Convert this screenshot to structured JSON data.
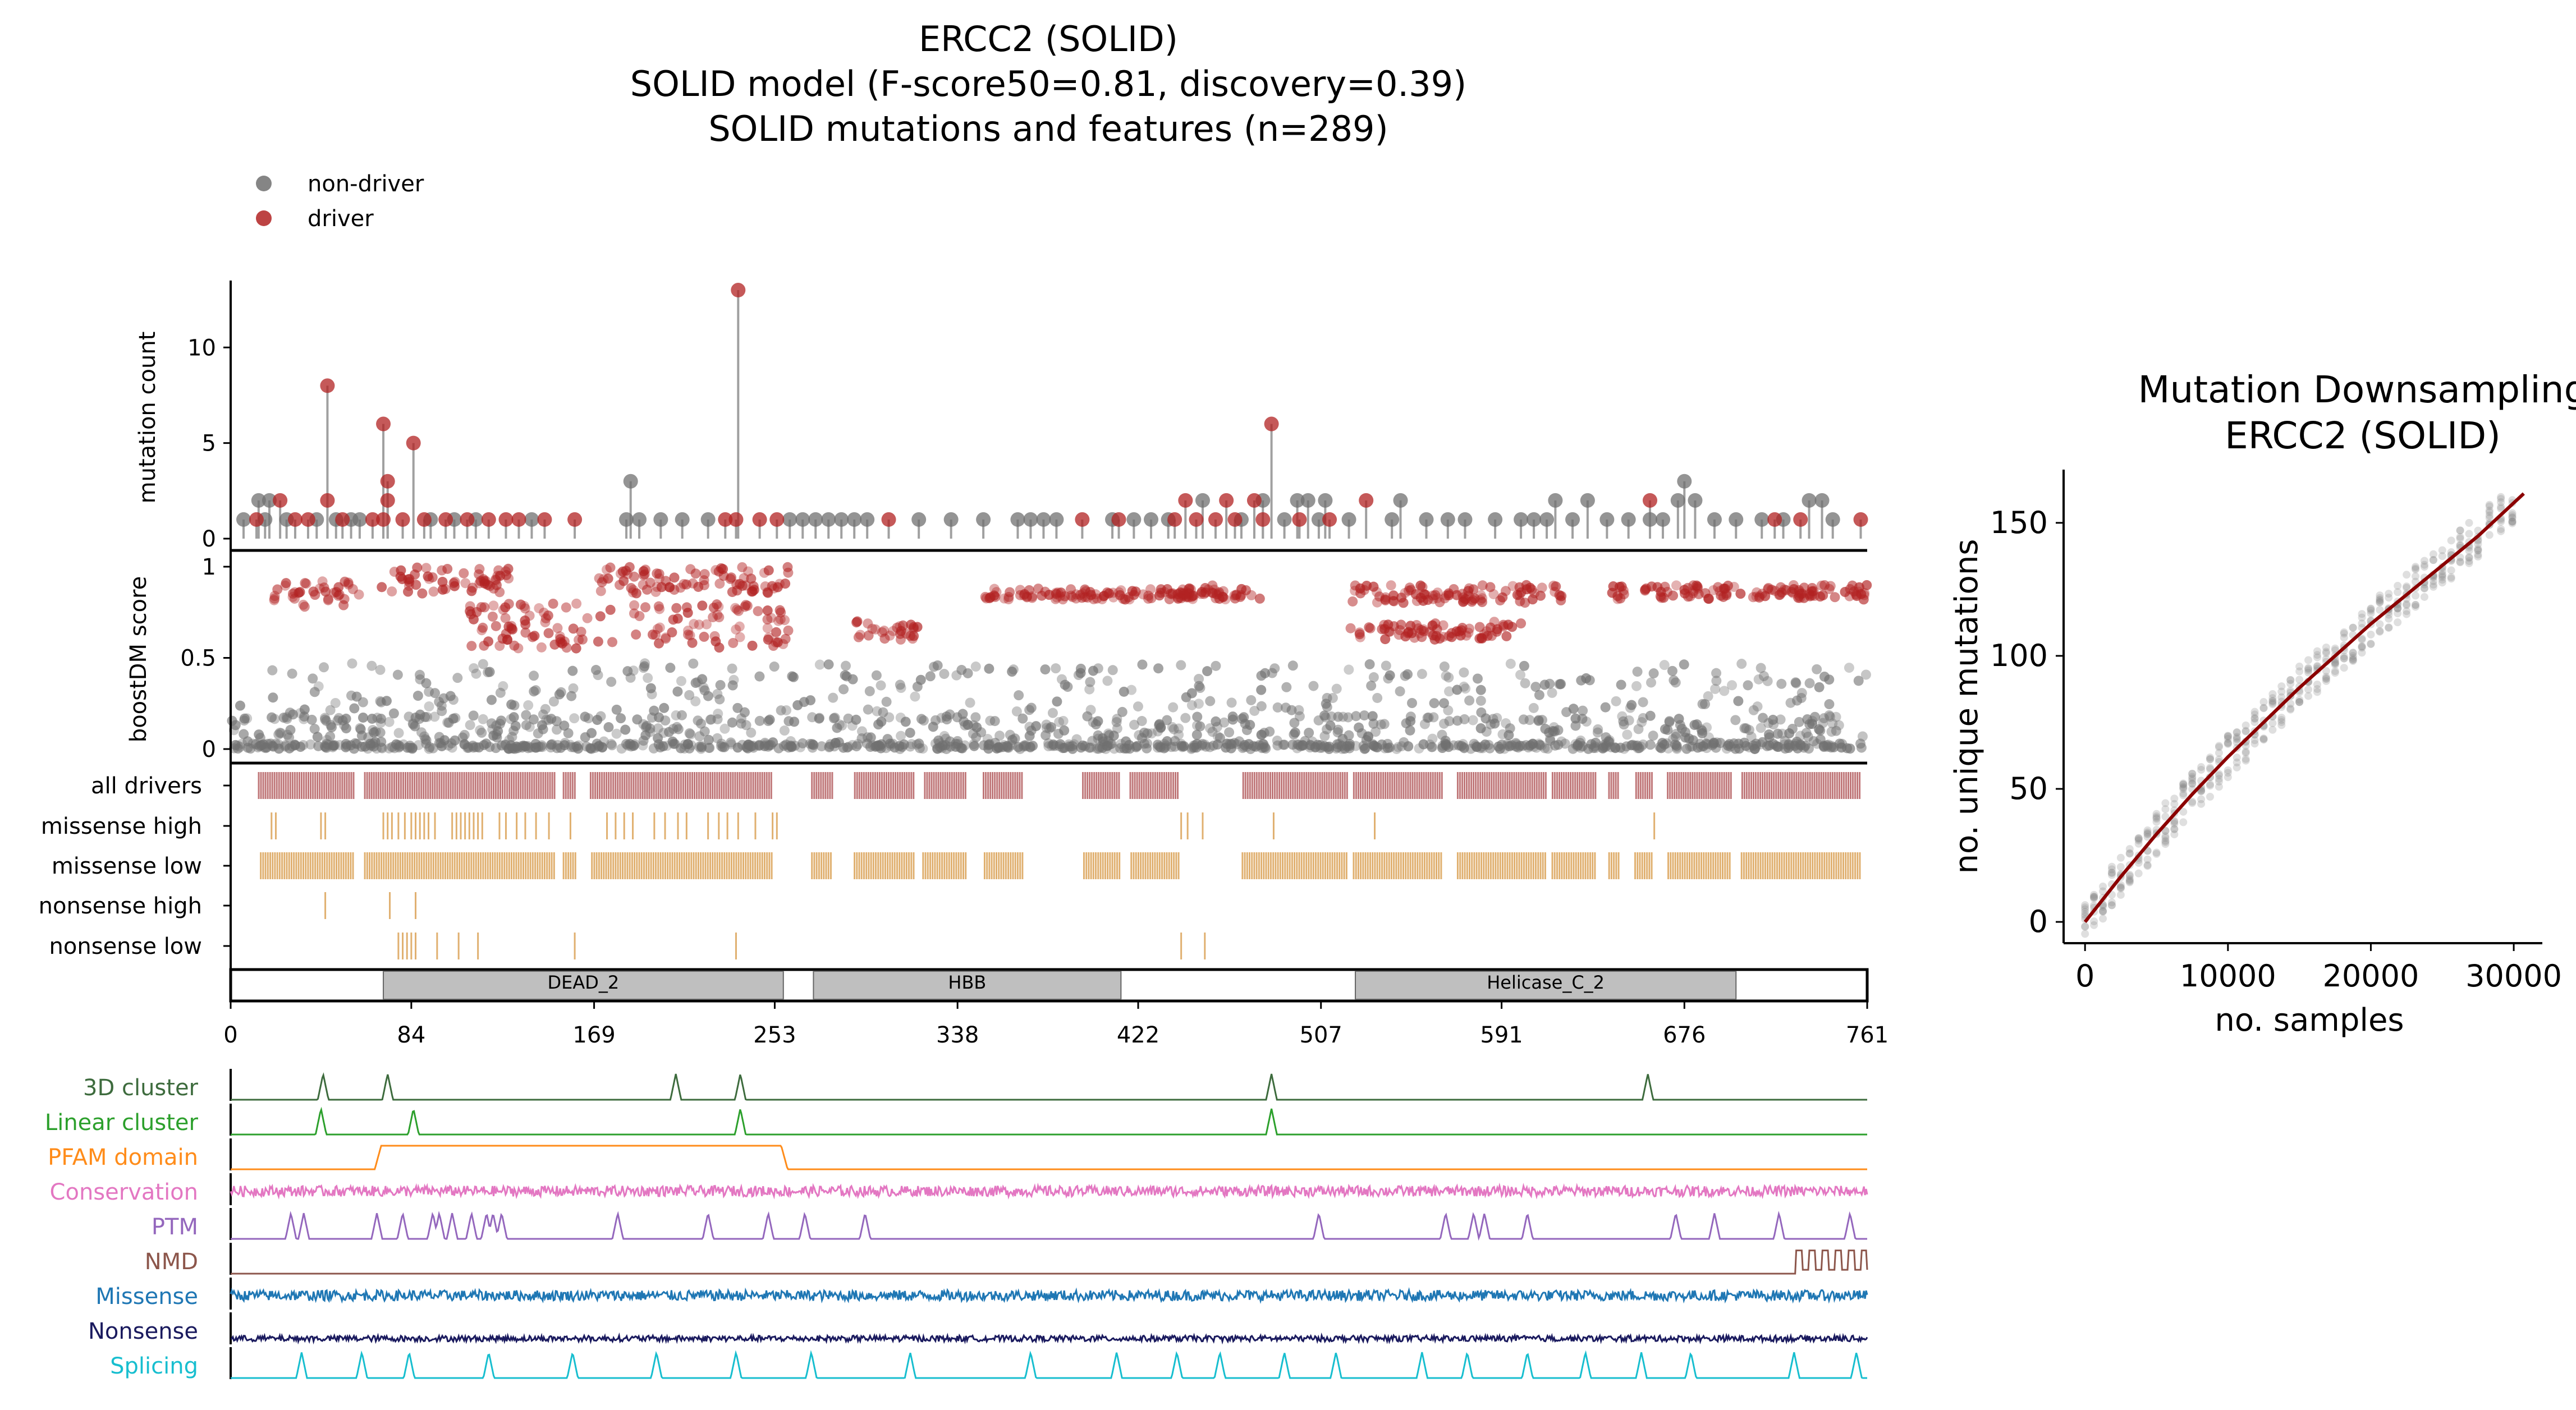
{
  "title": {
    "line1": "ERCC2 (SOLID)",
    "line2": "SOLID model (F-score50=0.81, discovery=0.39)",
    "line3": "SOLID mutations and features (n=289)"
  },
  "legend": [
    {
      "label": "non-driver",
      "color": "#707070"
    },
    {
      "label": "driver",
      "color": "#b22222"
    }
  ],
  "colors": {
    "driver": "#b22222",
    "nondriver": "#707070",
    "stem": "#a0a0a0",
    "drivers_track": "#c0787a",
    "consequence_track": "#e0b070",
    "domain_fill": "#bfbfbf"
  },
  "chart_data": [
    {
      "type": "scatter",
      "name": "lollipop",
      "ylabel": "mutation count",
      "yticks": [
        0,
        5,
        10
      ],
      "ylim": [
        0,
        13.5
      ],
      "xlim": [
        0,
        761
      ],
      "drivers": [
        [
          45,
          8
        ],
        [
          45,
          2
        ],
        [
          23,
          2
        ],
        [
          71,
          6
        ],
        [
          73,
          3
        ],
        [
          73,
          2
        ],
        [
          85,
          5
        ],
        [
          71,
          1
        ],
        [
          236,
          13
        ],
        [
          235,
          1
        ],
        [
          484,
          6
        ],
        [
          444,
          2
        ],
        [
          463,
          2
        ],
        [
          476,
          2
        ],
        [
          528,
          2
        ],
        [
          660,
          2
        ],
        [
          12,
          1
        ],
        [
          30,
          1
        ],
        [
          36,
          1
        ],
        [
          52,
          1
        ],
        [
          66,
          1
        ],
        [
          80,
          1
        ],
        [
          90,
          1
        ],
        [
          100,
          1
        ],
        [
          110,
          1
        ],
        [
          120,
          1
        ],
        [
          128,
          1
        ],
        [
          134,
          1
        ],
        [
          146,
          1
        ],
        [
          160,
          1
        ],
        [
          230,
          1
        ],
        [
          246,
          1
        ],
        [
          254,
          1
        ],
        [
          306,
          1
        ],
        [
          396,
          1
        ],
        [
          413,
          1
        ],
        [
          439,
          1
        ],
        [
          449,
          1
        ],
        [
          458,
          1
        ],
        [
          467,
          1
        ],
        [
          480,
          1
        ],
        [
          497,
          1
        ],
        [
          511,
          1
        ],
        [
          718,
          1
        ],
        [
          730,
          1
        ],
        [
          758,
          1
        ]
      ],
      "nondrivers": [
        [
          186,
          3
        ],
        [
          676,
          3
        ],
        [
          13,
          2
        ],
        [
          18,
          2
        ],
        [
          452,
          2
        ],
        [
          480,
          2
        ],
        [
          496,
          2
        ],
        [
          501,
          2
        ],
        [
          509,
          2
        ],
        [
          544,
          2
        ],
        [
          616,
          2
        ],
        [
          631,
          2
        ],
        [
          673,
          2
        ],
        [
          681,
          2
        ],
        [
          734,
          2
        ],
        [
          740,
          2
        ],
        [
          6,
          1
        ],
        [
          16,
          1
        ],
        [
          26,
          1
        ],
        [
          40,
          1
        ],
        [
          49,
          1
        ],
        [
          56,
          1
        ],
        [
          60,
          1
        ],
        [
          93,
          1
        ],
        [
          104,
          1
        ],
        [
          114,
          1
        ],
        [
          140,
          1
        ],
        [
          184,
          1
        ],
        [
          190,
          1
        ],
        [
          200,
          1
        ],
        [
          210,
          1
        ],
        [
          222,
          1
        ],
        [
          260,
          1
        ],
        [
          266,
          1
        ],
        [
          272,
          1
        ],
        [
          278,
          1
        ],
        [
          284,
          1
        ],
        [
          290,
          1
        ],
        [
          296,
          1
        ],
        [
          320,
          1
        ],
        [
          335,
          1
        ],
        [
          350,
          1
        ],
        [
          366,
          1
        ],
        [
          372,
          1
        ],
        [
          378,
          1
        ],
        [
          384,
          1
        ],
        [
          410,
          1
        ],
        [
          420,
          1
        ],
        [
          428,
          1
        ],
        [
          436,
          1
        ],
        [
          470,
          1
        ],
        [
          490,
          1
        ],
        [
          506,
          1
        ],
        [
          520,
          1
        ],
        [
          540,
          1
        ],
        [
          556,
          1
        ],
        [
          566,
          1
        ],
        [
          574,
          1
        ],
        [
          588,
          1
        ],
        [
          600,
          1
        ],
        [
          606,
          1
        ],
        [
          612,
          1
        ],
        [
          624,
          1
        ],
        [
          640,
          1
        ],
        [
          650,
          1
        ],
        [
          660,
          1
        ],
        [
          666,
          1
        ],
        [
          690,
          1
        ],
        [
          700,
          1
        ],
        [
          712,
          1
        ],
        [
          722,
          1
        ],
        [
          745,
          1
        ]
      ]
    },
    {
      "type": "scatter",
      "name": "boostdm",
      "ylabel": "boostDM score",
      "yticks": [
        0,
        0.5,
        1
      ],
      "ylim": [
        -0.05,
        1.05
      ],
      "xlim": [
        0,
        761
      ]
    },
    {
      "type": "table",
      "name": "driver-tracks",
      "rows": [
        "all drivers",
        "missense high",
        "missense low",
        "nonsense high",
        "nonsense low"
      ],
      "missense_high": [
        19,
        21,
        42,
        44,
        71,
        73,
        75,
        78,
        81,
        84,
        86,
        88,
        90,
        92,
        95,
        103,
        105,
        107,
        109,
        111,
        113,
        115,
        117,
        125,
        128,
        133,
        137,
        142,
        148,
        158,
        175,
        179,
        183,
        187,
        197,
        202,
        208,
        212,
        222,
        227,
        231,
        236,
        244,
        252,
        254,
        442,
        445,
        452,
        485,
        532,
        662
      ],
      "nonsense_high": [
        44,
        74,
        86
      ],
      "nonsense_low": [
        78,
        80,
        82,
        84,
        86,
        96,
        106,
        115,
        160,
        235,
        442,
        453
      ],
      "gaps": [
        [
          3,
          12
        ],
        [
          58,
          62
        ],
        [
          151,
          154
        ],
        [
          161,
          167
        ],
        [
          252,
          270
        ],
        [
          280,
          290
        ],
        [
          318,
          322
        ],
        [
          342,
          350
        ],
        [
          369,
          373
        ],
        [
          396,
          371
        ],
        [
          392,
          377
        ],
        [
          414,
          418
        ],
        [
          441,
          470
        ],
        [
          520,
          522
        ],
        [
          564,
          570
        ],
        [
          612,
          614
        ],
        [
          635,
          640
        ],
        [
          646,
          653
        ],
        [
          661,
          668
        ],
        [
          698,
          702
        ]
      ]
    },
    {
      "type": "table",
      "name": "protein-domains",
      "xlabel": "",
      "xlim": [
        0,
        761
      ],
      "xticks": [
        0,
        84,
        169,
        253,
        338,
        422,
        507,
        591,
        676,
        761
      ],
      "domains": [
        {
          "label": "DEAD_2",
          "start": 71,
          "end": 257
        },
        {
          "label": "HBB",
          "start": 271,
          "end": 414
        },
        {
          "label": "Helicase_C_2",
          "start": 523,
          "end": 700
        }
      ]
    },
    {
      "type": "line",
      "name": "features",
      "tracks": [
        {
          "label": "3D cluster",
          "color": "#3d6b3d",
          "kind": "peaks",
          "peaks": [
            43,
            73,
            207,
            237,
            484,
            659
          ]
        },
        {
          "label": "Linear cluster",
          "color": "#2ca02c",
          "kind": "peaks",
          "peaks": [
            42,
            85,
            237,
            484
          ]
        },
        {
          "label": "PFAM domain",
          "color": "#ff8c1a",
          "kind": "step",
          "segments": [
            [
              70,
              256
            ]
          ]
        },
        {
          "label": "Conservation",
          "color": "#e377c2",
          "kind": "noise"
        },
        {
          "label": "PTM",
          "color": "#9467bd",
          "kind": "peaks",
          "peaks": [
            28,
            34,
            68,
            80,
            94,
            97,
            103,
            112,
            119,
            122,
            126,
            180,
            222,
            250,
            267,
            295,
            506,
            565,
            578,
            583,
            603,
            672,
            690,
            720,
            753
          ]
        },
        {
          "label": "NMD",
          "color": "#8c564b",
          "kind": "nmd"
        },
        {
          "label": "Missense",
          "color": "#1f77b4",
          "kind": "noise"
        },
        {
          "label": "Nonsense",
          "color": "#1a1a5e",
          "kind": "noise"
        },
        {
          "label": "Splicing",
          "color": "#17becf",
          "kind": "peaks",
          "peaks": [
            33,
            61,
            83,
            120,
            159,
            198,
            235,
            270,
            316,
            372,
            412,
            440,
            460,
            490,
            514,
            554,
            575,
            603,
            630,
            656,
            679,
            727,
            756
          ]
        }
      ]
    },
    {
      "type": "scatter",
      "name": "downsampling",
      "title_line1": "Mutation Downsampling",
      "title_line2": "ERCC2 (SOLID)",
      "xlabel": "no. samples",
      "ylabel": "no. unique mutations",
      "xlim": [
        -1500,
        32000
      ],
      "ylim": [
        -8,
        170
      ],
      "xticks": [
        0,
        10000,
        20000,
        30000
      ],
      "yticks": [
        0,
        50,
        100,
        150
      ],
      "curve_x": [
        0,
        2500,
        5000,
        7500,
        10000,
        12500,
        15000,
        17500,
        20000,
        22500,
        25000,
        27500,
        30700
      ],
      "curve_y": [
        0,
        17,
        33,
        48,
        62,
        75,
        88,
        100,
        112,
        123,
        134,
        145,
        161
      ]
    }
  ]
}
